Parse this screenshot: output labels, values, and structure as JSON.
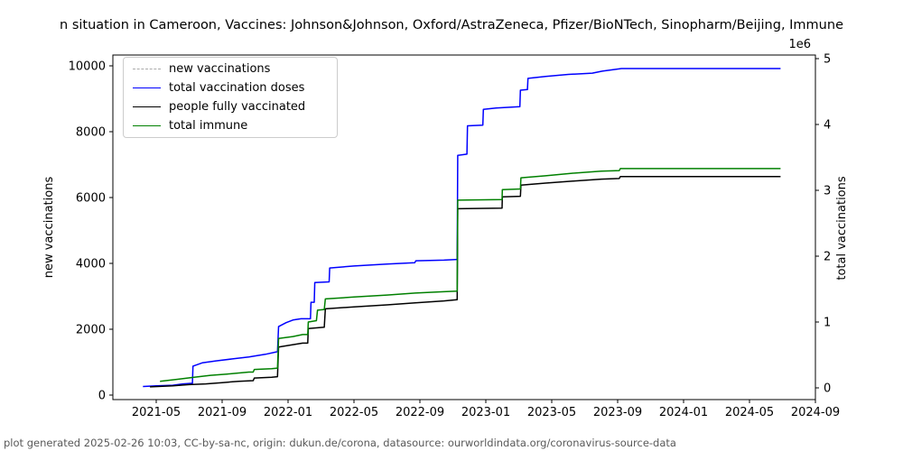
{
  "footer": {
    "text": "plot generated 2025-02-26 10:03, CC-by-sa-nc, origin: dukun.de/corona, datasource: ourworldindata.org/coronavirus-source-data"
  },
  "chart_data": {
    "type": "line",
    "title": "n situation in Cameroon, Vaccines: Johnson&Johnson, Oxford/AstraZeneca, Pfizer/BioNTech, Sinopharm/Beijing, Immune",
    "x_axis": {
      "tick_labels": [
        "2021-05",
        "2021-09",
        "2022-01",
        "2022-05",
        "2022-09",
        "2023-01",
        "2023-05",
        "2023-09",
        "2024-01",
        "2024-05",
        "2024-09"
      ],
      "range": [
        "2021-02-15",
        "2024-09-01"
      ],
      "grid": false
    },
    "left_y_axis": {
      "label": "new vaccinations",
      "tick_labels": [
        "0",
        "2000",
        "4000",
        "6000",
        "8000",
        "10000"
      ],
      "tick_values": [
        0,
        2000,
        4000,
        6000,
        8000,
        10000
      ],
      "range": [
        -140,
        10330
      ]
    },
    "right_y_axis": {
      "label": "total vaccinations",
      "offset_text": "1e6",
      "tick_labels": [
        "0",
        "1",
        "2",
        "3",
        "4",
        "5"
      ],
      "tick_values": [
        0,
        1,
        2,
        3,
        4,
        5
      ],
      "range_millions": [
        -0.18,
        5.05
      ]
    },
    "legend": {
      "position": "upper-left",
      "entries": [
        {
          "label": "new vaccinations",
          "color": "#aaaaaa",
          "dash": true
        },
        {
          "label": "total vaccination doses",
          "color": "#0000ff",
          "dash": false
        },
        {
          "label": "people fully vaccinated",
          "color": "#000000",
          "dash": false
        },
        {
          "label": "total immune",
          "color": "#008000",
          "dash": false
        }
      ]
    },
    "series": [
      {
        "name": "new vaccinations",
        "axis": "left",
        "color": "#aaaaaa",
        "dash": true,
        "visible": false,
        "points": []
      },
      {
        "name": "total vaccination doses",
        "axis": "right",
        "unit_millions": true,
        "color": "#0000ff",
        "dash": false,
        "visible": true,
        "points": [
          [
            "2021-04-07",
            0.02
          ],
          [
            "2021-05-01",
            0.03
          ],
          [
            "2021-06-01",
            0.04
          ],
          [
            "2021-06-20",
            0.06
          ],
          [
            "2021-07-07",
            0.07
          ],
          [
            "2021-07-08",
            0.33
          ],
          [
            "2021-07-25",
            0.38
          ],
          [
            "2021-08-20",
            0.41
          ],
          [
            "2021-09-20",
            0.44
          ],
          [
            "2021-10-20",
            0.47
          ],
          [
            "2021-11-20",
            0.51
          ],
          [
            "2021-12-12",
            0.55
          ],
          [
            "2021-12-14",
            0.93
          ],
          [
            "2021-12-28",
            0.99
          ],
          [
            "2022-01-10",
            1.03
          ],
          [
            "2022-01-25",
            1.05
          ],
          [
            "2022-02-12",
            1.05
          ],
          [
            "2022-02-13",
            1.3
          ],
          [
            "2022-02-19",
            1.3
          ],
          [
            "2022-02-20",
            1.6
          ],
          [
            "2022-03-16",
            1.61
          ],
          [
            "2022-03-17",
            1.82
          ],
          [
            "2022-05-01",
            1.85
          ],
          [
            "2022-07-01",
            1.88
          ],
          [
            "2022-08-22",
            1.9
          ],
          [
            "2022-08-24",
            1.93
          ],
          [
            "2022-10-15",
            1.94
          ],
          [
            "2022-11-09",
            1.95
          ],
          [
            "2022-11-10",
            3.53
          ],
          [
            "2022-11-27",
            3.55
          ],
          [
            "2022-11-28",
            3.98
          ],
          [
            "2022-12-26",
            3.99
          ],
          [
            "2022-12-27",
            4.23
          ],
          [
            "2023-01-20",
            4.25
          ],
          [
            "2023-03-03",
            4.27
          ],
          [
            "2023-03-04",
            4.52
          ],
          [
            "2023-03-17",
            4.53
          ],
          [
            "2023-03-18",
            4.7
          ],
          [
            "2023-04-20",
            4.73
          ],
          [
            "2023-06-01",
            4.76
          ],
          [
            "2023-07-15",
            4.78
          ],
          [
            "2023-08-03",
            4.81
          ],
          [
            "2023-09-08",
            4.85
          ],
          [
            "2024-06-28",
            4.85
          ]
        ]
      },
      {
        "name": "people fully vaccinated",
        "axis": "right",
        "unit_millions": true,
        "color": "#000000",
        "dash": false,
        "visible": true,
        "points": [
          [
            "2021-04-20",
            0.015
          ],
          [
            "2021-06-01",
            0.03
          ],
          [
            "2021-07-01",
            0.05
          ],
          [
            "2021-08-01",
            0.06
          ],
          [
            "2021-09-01",
            0.08
          ],
          [
            "2021-10-01",
            0.1
          ],
          [
            "2021-10-28",
            0.11
          ],
          [
            "2021-10-30",
            0.15
          ],
          [
            "2021-12-01",
            0.16
          ],
          [
            "2021-12-12",
            0.17
          ],
          [
            "2021-12-14",
            0.62
          ],
          [
            "2022-01-05",
            0.65
          ],
          [
            "2022-01-28",
            0.68
          ],
          [
            "2022-02-07",
            0.68
          ],
          [
            "2022-02-08",
            0.9
          ],
          [
            "2022-03-07",
            0.92
          ],
          [
            "2022-03-09",
            1.2
          ],
          [
            "2022-05-01",
            1.23
          ],
          [
            "2022-07-01",
            1.26
          ],
          [
            "2022-08-23",
            1.29
          ],
          [
            "2022-10-15",
            1.32
          ],
          [
            "2022-11-09",
            1.34
          ],
          [
            "2022-11-10",
            2.72
          ],
          [
            "2023-01-31",
            2.73
          ],
          [
            "2023-02-01",
            2.9
          ],
          [
            "2023-03-04",
            2.91
          ],
          [
            "2023-03-05",
            3.08
          ],
          [
            "2023-04-20",
            3.11
          ],
          [
            "2023-06-10",
            3.14
          ],
          [
            "2023-08-01",
            3.17
          ],
          [
            "2023-09-04",
            3.18
          ],
          [
            "2023-09-06",
            3.21
          ],
          [
            "2024-06-28",
            3.21
          ]
        ]
      },
      {
        "name": "total immune",
        "axis": "right",
        "unit_millions": true,
        "color": "#008000",
        "dash": false,
        "visible": true,
        "points": [
          [
            "2021-05-08",
            0.1
          ],
          [
            "2021-06-10",
            0.13
          ],
          [
            "2021-07-10",
            0.16
          ],
          [
            "2021-08-10",
            0.19
          ],
          [
            "2021-09-10",
            0.21
          ],
          [
            "2021-10-20",
            0.24
          ],
          [
            "2021-10-28",
            0.24
          ],
          [
            "2021-10-30",
            0.28
          ],
          [
            "2021-12-01",
            0.29
          ],
          [
            "2021-12-12",
            0.3
          ],
          [
            "2021-12-14",
            0.75
          ],
          [
            "2022-01-10",
            0.78
          ],
          [
            "2022-01-28",
            0.81
          ],
          [
            "2022-02-07",
            0.81
          ],
          [
            "2022-02-08",
            1.0
          ],
          [
            "2022-02-23",
            1.02
          ],
          [
            "2022-02-25",
            1.18
          ],
          [
            "2022-03-07",
            1.19
          ],
          [
            "2022-03-09",
            1.35
          ],
          [
            "2022-05-01",
            1.38
          ],
          [
            "2022-07-01",
            1.41
          ],
          [
            "2022-08-23",
            1.44
          ],
          [
            "2022-10-15",
            1.46
          ],
          [
            "2022-11-09",
            1.47
          ],
          [
            "2022-11-10",
            2.85
          ],
          [
            "2023-01-31",
            2.86
          ],
          [
            "2023-02-01",
            3.01
          ],
          [
            "2023-03-04",
            3.02
          ],
          [
            "2023-03-05",
            3.19
          ],
          [
            "2023-04-20",
            3.22
          ],
          [
            "2023-06-10",
            3.26
          ],
          [
            "2023-08-01",
            3.29
          ],
          [
            "2023-09-04",
            3.3
          ],
          [
            "2023-09-06",
            3.33
          ],
          [
            "2024-06-28",
            3.33
          ]
        ]
      }
    ]
  }
}
